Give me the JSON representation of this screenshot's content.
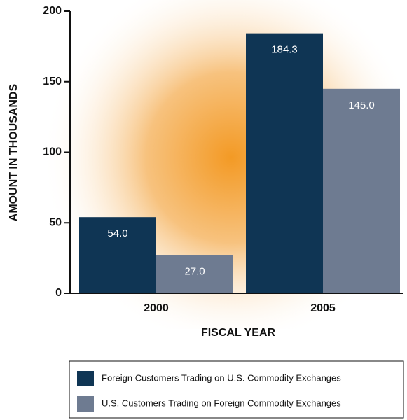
{
  "chart_data": {
    "type": "bar",
    "categories": [
      "2000",
      "2005"
    ],
    "series": [
      {
        "name": "Foreign Customers Trading on U.S. Commodity Exchanges",
        "color": "#0f3554",
        "values": [
          54,
          184.3
        ],
        "value_labels": [
          "54.0",
          "184.3"
        ]
      },
      {
        "name": "U.S. Customers Trading on Foreign Commodity Exchanges",
        "color": "#6e7b91",
        "values": [
          27,
          145
        ],
        "value_labels": [
          "27.0",
          "145.0"
        ]
      }
    ],
    "ylim": [
      0,
      200
    ],
    "yticks": [
      0,
      50,
      100,
      150,
      200
    ],
    "xlabel": "FISCAL YEAR",
    "ylabel": "AMOUNT IN THOUSANDS",
    "legend": "bottom"
  }
}
